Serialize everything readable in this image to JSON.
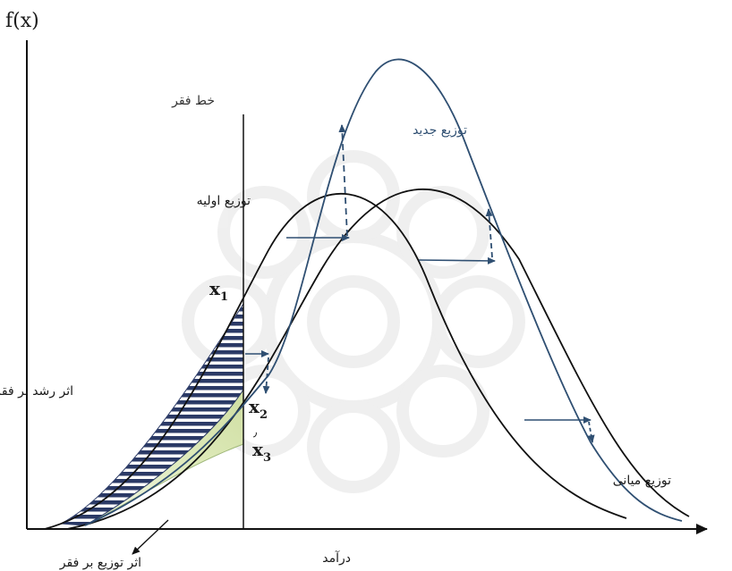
{
  "axis": {
    "y_label": "f(x)",
    "x_label": "درآمد"
  },
  "labels": {
    "poverty_line": "خط فقر",
    "new_distribution": "توزیع جدید",
    "initial_distribution": "توزیع اولیه",
    "middle_distribution": "توزیع میانی",
    "growth_effect": "اثر رشد بر فقر",
    "distribution_effect": "اثر توزیع بر فقر"
  },
  "points": {
    "x1": {
      "base": "x",
      "sub": "1"
    },
    "x2": {
      "base": "x",
      "sub": "2"
    },
    "x3": {
      "base": "x",
      "sub": "3"
    },
    "mark": "٫"
  },
  "colors": {
    "black_curve": "#111111",
    "blue_curve": "#2f4f72",
    "hatch": "#2b3a66",
    "green_fill": "#d9e6b4"
  }
}
